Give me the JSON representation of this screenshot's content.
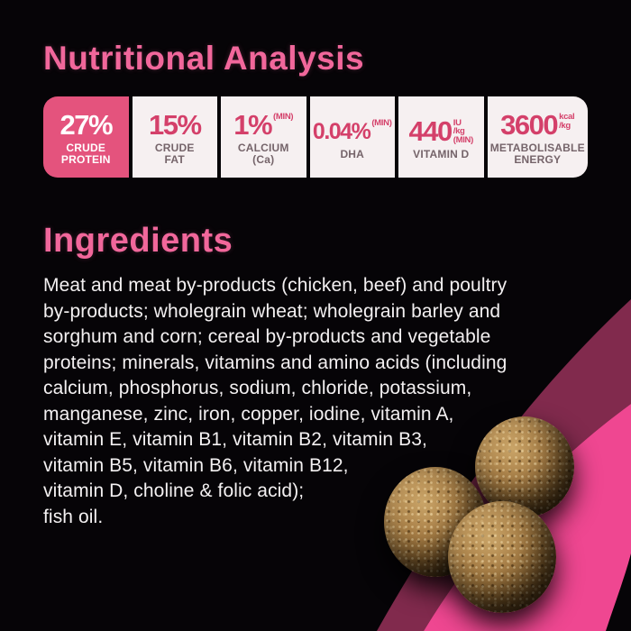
{
  "nutritional": {
    "title": "Nutritional Analysis",
    "boxes": [
      {
        "value": "27%",
        "label1": "CRUDE",
        "label2": "PROTEIN",
        "highlighted": true
      },
      {
        "value": "15%",
        "label1": "CRUDE",
        "label2": "FAT"
      },
      {
        "value": "1%",
        "unit1": "(MIN)",
        "label1": "CALCIUM",
        "label2": "(Ca)"
      },
      {
        "value": "0.04%",
        "unit1": "(MIN)",
        "label1": "DHA"
      },
      {
        "value": "440",
        "unit1": "IU",
        "unit2": "/kg",
        "unit3": "(MIN)",
        "label1": "VITAMIN D"
      },
      {
        "value": "3600",
        "unit1": "kcal",
        "unit2": "/kg",
        "label1": "METABOLISABLE",
        "label2": "ENERGY"
      }
    ]
  },
  "ingredients": {
    "title": "Ingredients",
    "lines": [
      "Meat and meat by-products (chicken, beef) and poultry",
      "by-products; wholegrain wheat; wholegrain barley and",
      "sorghum and corn; cereal by-products and vegetable",
      "proteins; minerals, vitamins and amino acids (including",
      "calcium, phosphorus, sodium, chloride, potassium,",
      "manganese, zinc, iron, copper, iodine, vitamin A,",
      "vitamin E, vitamin B1, vitamin B2, vitamin B3,",
      "vitamin B5, vitamin B6, vitamin B12,",
      "vitamin D, choline & folic acid);",
      "fish oil."
    ]
  },
  "colors": {
    "background": "#060407",
    "heading_pink": "#f1679b",
    "highlight_box_pink": "#e4537d",
    "stat_value_crimson": "#d4406a",
    "stat_label_taupe": "#75646a",
    "stat_box_background": "#f6f0f1",
    "ribbon_bright_pink": "#ef4791",
    "ribbon_dark_magenta": "#812a4d",
    "body_text_white": "#f3f0f1",
    "kibble_brown": "#ab8148"
  }
}
